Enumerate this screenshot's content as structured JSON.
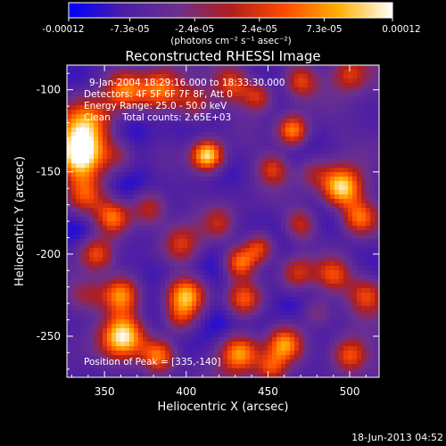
{
  "chart_data": {
    "type": "heatmap",
    "title": "Reconstructed RHESSI Image",
    "xlabel": "Heliocentric X (arcsec)",
    "ylabel": "Heliocentric Y (arcsec)",
    "xlim": [
      327,
      518
    ],
    "ylim": [
      -275,
      -85
    ],
    "x_ticks": [
      350,
      400,
      450,
      500
    ],
    "y_ticks": [
      -100,
      -150,
      -200,
      -250
    ],
    "annotations": {
      "time_range": "9-Jan-2004 18:29:16.000 to 18:33:30.000",
      "detectors": "Detectors: 4F 5F 6F 7F 8F, Att 0",
      "energy": "Energy Range: 25.0 - 50.0 keV",
      "clean": "Clean    Total counts: 2.65E+03",
      "peak": "Position of Peak = [335,-140]"
    },
    "colorbar": {
      "min": -0.00012,
      "max": 0.00012,
      "tick_labels": [
        "-0.00012",
        "-7.3e-05",
        "-2.4e-05",
        "2.4e-05",
        "7.3e-05",
        "0.00012"
      ],
      "unit": "(photons cm⁻² s⁻¹ asec⁻²)",
      "colors": [
        "#0000ff",
        "#4b1da6",
        "#6a2f90",
        "#b01e1e",
        "#ff4a00",
        "#ffb000",
        "#ffffff"
      ]
    },
    "peak_position": [
      335,
      -140
    ],
    "sources": [
      {
        "x": 335,
        "y": -140,
        "v": 1.0,
        "s": 11
      },
      {
        "x": 340,
        "y": -120,
        "v": 0.75,
        "s": 12
      },
      {
        "x": 338,
        "y": -165,
        "v": 0.55,
        "s": 9
      },
      {
        "x": 362,
        "y": -100,
        "v": 0.55,
        "s": 9
      },
      {
        "x": 385,
        "y": -100,
        "v": 0.65,
        "s": 10
      },
      {
        "x": 358,
        "y": -140,
        "v": 0.35,
        "s": 8
      },
      {
        "x": 405,
        "y": -108,
        "v": 0.45,
        "s": 8
      },
      {
        "x": 428,
        "y": -97,
        "v": 0.5,
        "s": 8
      },
      {
        "x": 444,
        "y": -104,
        "v": 0.45,
        "s": 7
      },
      {
        "x": 470,
        "y": -95,
        "v": 0.4,
        "s": 7
      },
      {
        "x": 500,
        "y": -90,
        "v": 0.4,
        "s": 8
      },
      {
        "x": 413,
        "y": -140,
        "v": 0.85,
        "s": 7
      },
      {
        "x": 465,
        "y": -125,
        "v": 0.7,
        "s": 7
      },
      {
        "x": 453,
        "y": -148,
        "v": 0.4,
        "s": 7
      },
      {
        "x": 478,
        "y": -150,
        "v": 0.3,
        "s": 8
      },
      {
        "x": 495,
        "y": -160,
        "v": 0.9,
        "s": 9
      },
      {
        "x": 506,
        "y": -178,
        "v": 0.65,
        "s": 8
      },
      {
        "x": 470,
        "y": -182,
        "v": 0.4,
        "s": 7
      },
      {
        "x": 445,
        "y": -196,
        "v": 0.55,
        "s": 7
      },
      {
        "x": 433,
        "y": -205,
        "v": 0.6,
        "s": 7
      },
      {
        "x": 397,
        "y": -195,
        "v": 0.5,
        "s": 9
      },
      {
        "x": 420,
        "y": -182,
        "v": 0.3,
        "s": 7
      },
      {
        "x": 355,
        "y": -178,
        "v": 0.7,
        "s": 8
      },
      {
        "x": 377,
        "y": -172,
        "v": 0.5,
        "s": 8
      },
      {
        "x": 345,
        "y": -200,
        "v": 0.6,
        "s": 8
      },
      {
        "x": 340,
        "y": -225,
        "v": 0.35,
        "s": 8
      },
      {
        "x": 360,
        "y": -225,
        "v": 0.85,
        "s": 9
      },
      {
        "x": 400,
        "y": -225,
        "v": 0.8,
        "s": 9
      },
      {
        "x": 435,
        "y": -228,
        "v": 0.55,
        "s": 8
      },
      {
        "x": 468,
        "y": -212,
        "v": 0.45,
        "s": 8
      },
      {
        "x": 490,
        "y": -213,
        "v": 0.5,
        "s": 8
      },
      {
        "x": 510,
        "y": -225,
        "v": 0.45,
        "s": 8
      },
      {
        "x": 362,
        "y": -250,
        "v": 0.95,
        "s": 10
      },
      {
        "x": 383,
        "y": -262,
        "v": 0.75,
        "s": 8
      },
      {
        "x": 433,
        "y": -260,
        "v": 0.75,
        "s": 9
      },
      {
        "x": 460,
        "y": -255,
        "v": 0.65,
        "s": 8
      },
      {
        "x": 452,
        "y": -270,
        "v": 0.5,
        "s": 7
      },
      {
        "x": 500,
        "y": -262,
        "v": 0.55,
        "s": 8
      },
      {
        "x": 396,
        "y": -240,
        "v": 0.3,
        "s": 7
      },
      {
        "x": 480,
        "y": -235,
        "v": 0.3,
        "s": 7
      }
    ]
  },
  "footer": {
    "date": "18-Jun-2013 04:52"
  }
}
